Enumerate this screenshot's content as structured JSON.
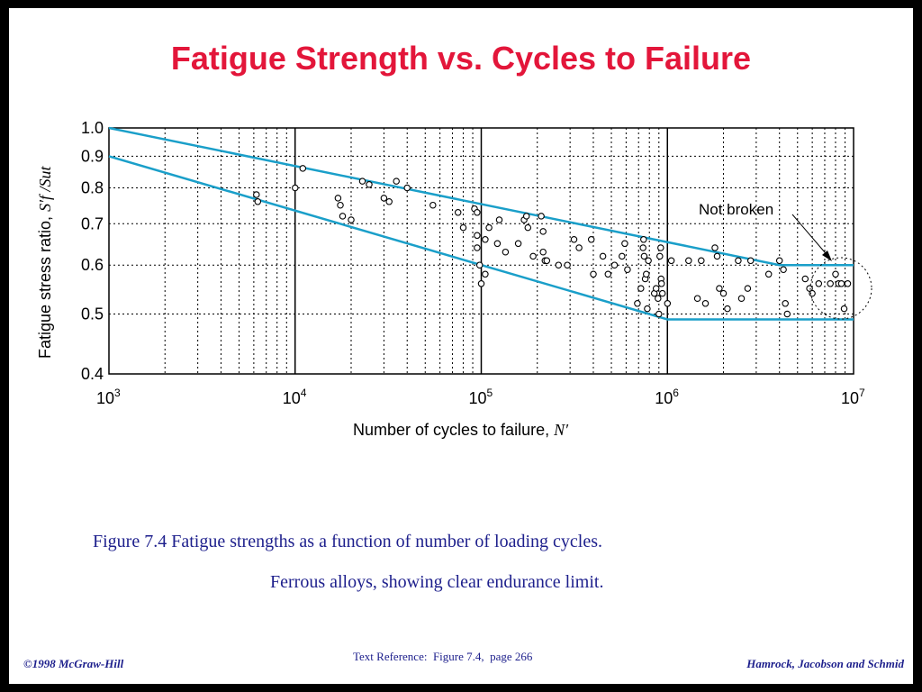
{
  "slide": {
    "title": "Fatigue Strength vs. Cycles to Failure",
    "caption_line1": "Figure 7.4 Fatigue strengths as a function of number of loading cycles.",
    "caption_line2": "Ferrous alloys, showing clear endurance limit.",
    "footer_left": "©1998 McGraw-Hill",
    "footer_center": "Text Reference:  Figure 7.4,  page 266",
    "footer_right": "Hamrock, Jacobson and Schmid",
    "title_color": "#e3163a",
    "text_color": "#1d1f8c"
  },
  "chart_data": {
    "type": "scatter",
    "x_scale": "log",
    "y_scale": "log",
    "xlim": [
      1000,
      10000000
    ],
    "ylim": [
      0.4,
      1.0
    ],
    "xlabel_text": "Number of cycles to failure, ",
    "xlabel_symbol": "N′",
    "ylabel_text": "Fatigue stress ratio, ",
    "ylabel_symbol": "S′f /Sut",
    "x_ticks": [
      {
        "base": "10",
        "exp": "3",
        "value": 1000
      },
      {
        "base": "10",
        "exp": "4",
        "value": 10000
      },
      {
        "base": "10",
        "exp": "5",
        "value": 100000
      },
      {
        "base": "10",
        "exp": "6",
        "value": 1000000
      },
      {
        "base": "10",
        "exp": "7",
        "value": 10000000
      }
    ],
    "y_ticks": [
      "1.0",
      "0.9",
      "0.8",
      "0.7",
      "0.6",
      "0.5",
      "0.4"
    ],
    "grid": "dotted",
    "annotation": {
      "text": "Not broken",
      "x": 8500000,
      "y": 0.56
    },
    "bounds": {
      "color": "#1a9fc9",
      "upper": [
        [
          1000,
          1.0
        ],
        [
          4000000,
          0.6
        ],
        [
          10000000,
          0.6
        ]
      ],
      "lower": [
        [
          1000,
          0.9
        ],
        [
          1000000,
          0.49
        ],
        [
          10000000,
          0.49
        ]
      ]
    },
    "points": [
      [
        6200,
        0.78
      ],
      [
        6300,
        0.76
      ],
      [
        10000,
        0.8
      ],
      [
        11000,
        0.86
      ],
      [
        17000,
        0.77
      ],
      [
        17500,
        0.75
      ],
      [
        18000,
        0.72
      ],
      [
        20000,
        0.71
      ],
      [
        23000,
        0.82
      ],
      [
        25000,
        0.81
      ],
      [
        30000,
        0.77
      ],
      [
        32000,
        0.76
      ],
      [
        35000,
        0.82
      ],
      [
        40000,
        0.8
      ],
      [
        55000,
        0.75
      ],
      [
        75000,
        0.73
      ],
      [
        80000,
        0.69
      ],
      [
        92000,
        0.74
      ],
      [
        95000,
        0.73
      ],
      [
        95000,
        0.67
      ],
      [
        95000,
        0.64
      ],
      [
        98000,
        0.6
      ],
      [
        100000,
        0.56
      ],
      [
        105000,
        0.58
      ],
      [
        105000,
        0.66
      ],
      [
        110000,
        0.69
      ],
      [
        122000,
        0.65
      ],
      [
        125000,
        0.71
      ],
      [
        135000,
        0.63
      ],
      [
        158000,
        0.65
      ],
      [
        170000,
        0.71
      ],
      [
        175000,
        0.72
      ],
      [
        178000,
        0.69
      ],
      [
        190000,
        0.62
      ],
      [
        210000,
        0.72
      ],
      [
        215000,
        0.68
      ],
      [
        215000,
        0.63
      ],
      [
        220000,
        0.61
      ],
      [
        225000,
        0.61
      ],
      [
        260000,
        0.6
      ],
      [
        290000,
        0.6
      ],
      [
        315000,
        0.66
      ],
      [
        335000,
        0.64
      ],
      [
        390000,
        0.66
      ],
      [
        400000,
        0.58
      ],
      [
        450000,
        0.62
      ],
      [
        480000,
        0.58
      ],
      [
        520000,
        0.6
      ],
      [
        570000,
        0.62
      ],
      [
        590000,
        0.65
      ],
      [
        610000,
        0.59
      ],
      [
        690000,
        0.52
      ],
      [
        720000,
        0.55
      ],
      [
        740000,
        0.64
      ],
      [
        745000,
        0.66
      ],
      [
        750000,
        0.62
      ],
      [
        760000,
        0.57
      ],
      [
        770000,
        0.58
      ],
      [
        780000,
        0.51
      ],
      [
        790000,
        0.61
      ],
      [
        850000,
        0.54
      ],
      [
        870000,
        0.55
      ],
      [
        890000,
        0.53
      ],
      [
        900000,
        0.5
      ],
      [
        910000,
        0.62
      ],
      [
        920000,
        0.64
      ],
      [
        925000,
        0.57
      ],
      [
        930000,
        0.56
      ],
      [
        940000,
        0.54
      ],
      [
        1000000,
        0.52
      ],
      [
        1050000,
        0.61
      ],
      [
        1300000,
        0.61
      ],
      [
        1450000,
        0.53
      ],
      [
        1520000,
        0.61
      ],
      [
        1600000,
        0.52
      ],
      [
        1800000,
        0.64
      ],
      [
        1850000,
        0.62
      ],
      [
        1900000,
        0.55
      ],
      [
        2000000,
        0.54
      ],
      [
        2100000,
        0.51
      ],
      [
        2400000,
        0.61
      ],
      [
        2500000,
        0.53
      ],
      [
        2700000,
        0.55
      ],
      [
        2800000,
        0.61
      ],
      [
        3500000,
        0.58
      ],
      [
        4000000,
        0.61
      ],
      [
        4200000,
        0.59
      ],
      [
        4300000,
        0.52
      ],
      [
        4400000,
        0.5
      ],
      [
        5500000,
        0.57
      ],
      [
        5800000,
        0.55
      ],
      [
        6000000,
        0.54
      ],
      [
        6500000,
        0.56
      ],
      [
        7500000,
        0.56
      ],
      [
        8000000,
        0.58
      ],
      [
        8300000,
        0.56
      ],
      [
        8600000,
        0.56
      ],
      [
        8900000,
        0.51
      ],
      [
        9300000,
        0.56
      ]
    ]
  }
}
